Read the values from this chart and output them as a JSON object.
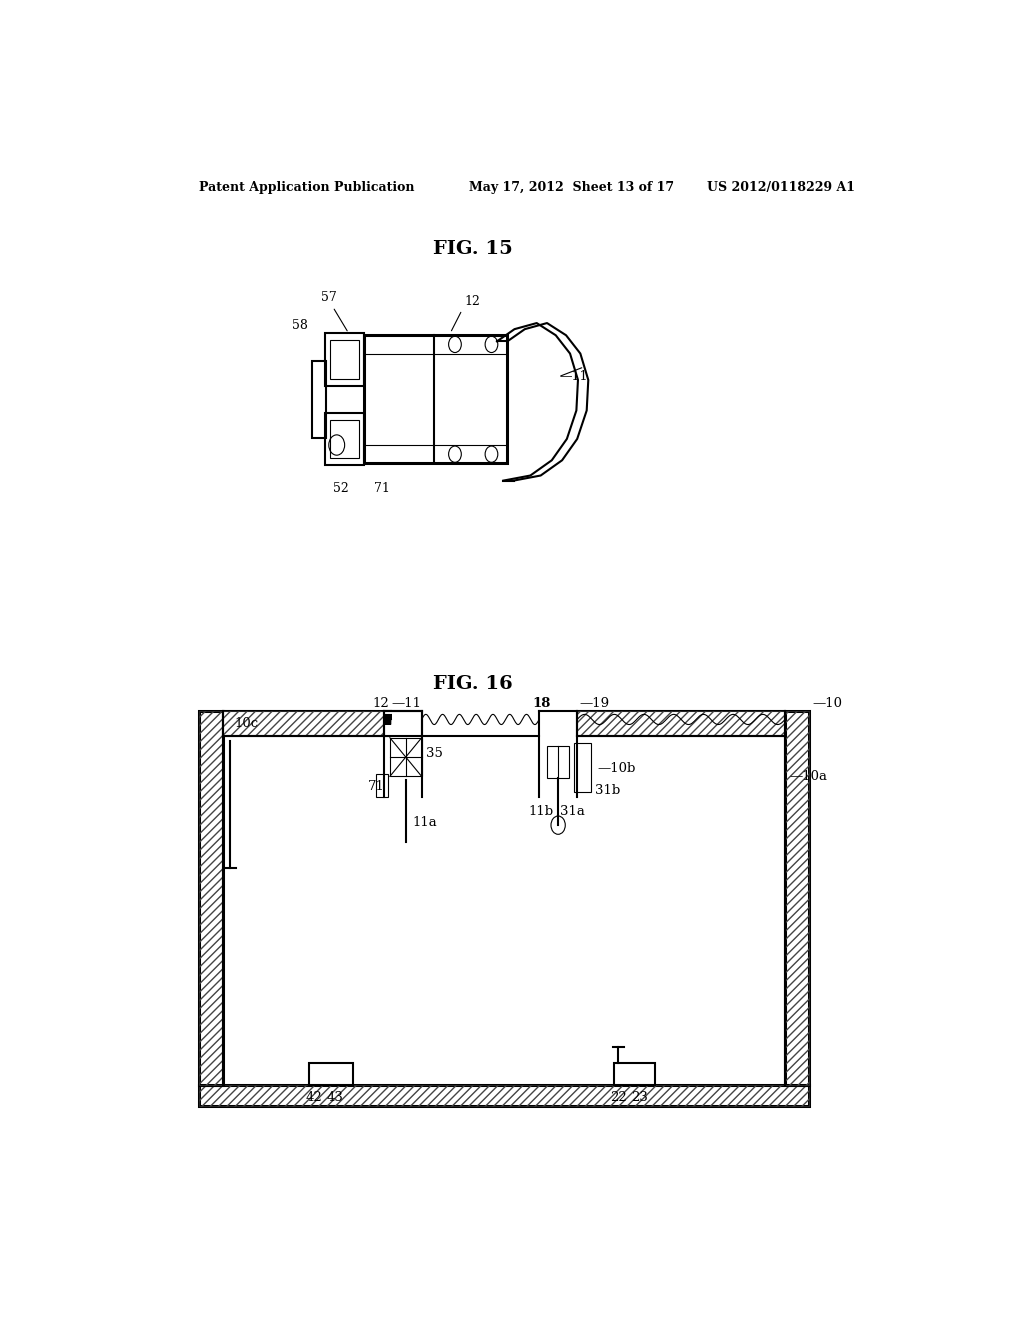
{
  "background_color": "#ffffff",
  "header_text": "Patent Application Publication",
  "header_date": "May 17, 2012  Sheet 13 of 17",
  "header_patent": "US 2012/0118229 A1",
  "fig15_label": "FIG. 15",
  "fig16_label": "FIG. 16",
  "line_color": "#000000",
  "lw_main": 1.5,
  "lw_thin": 0.8,
  "lw_thick": 2.2
}
